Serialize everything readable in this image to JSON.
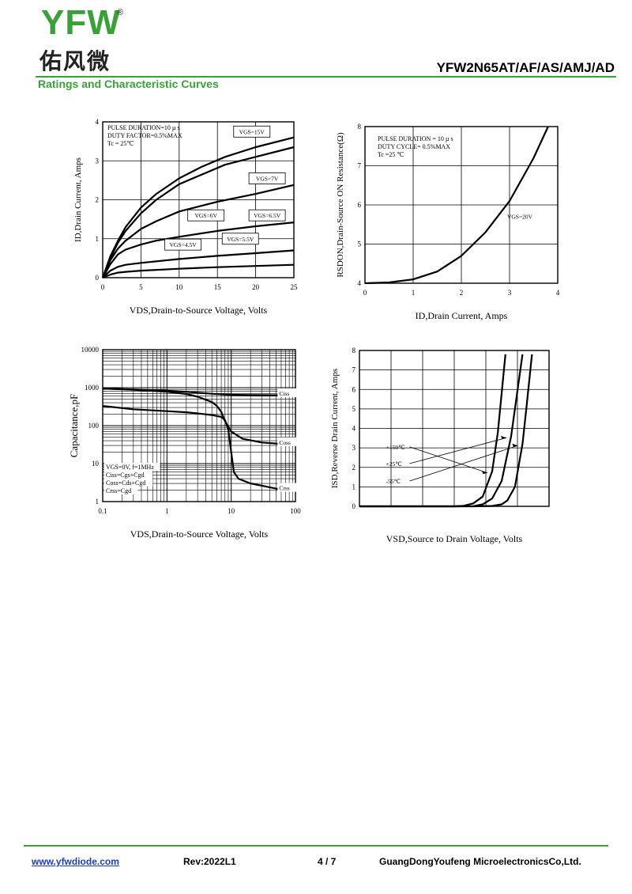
{
  "header": {
    "logo_text": "YFW",
    "logo_mark": "®",
    "logo_chinese": "佑风微",
    "part_number": "YFW2N65AT/AF/AS/AMJ/AD",
    "section_title": "Ratings and Characteristic Curves"
  },
  "footer": {
    "website": "www.yfwdiode.com",
    "revision": "Rev:2022L1",
    "page": "4 / 7",
    "company": "GuangDongYoufeng MicroelectronicsCo,Ltd."
  },
  "colors": {
    "brand": "#3aa13a",
    "link": "#1a3cc8"
  },
  "chart_data": [
    {
      "id": "output",
      "type": "line",
      "xlabel": "VDS,Drain-to-Source Voltage, Volts",
      "ylabel": "ID,Drain Current, Amps",
      "xlim": [
        0,
        25
      ],
      "ylim": [
        0,
        4
      ],
      "xticks": [
        0,
        5,
        10,
        15,
        20,
        25
      ],
      "yticks": [
        0,
        1,
        2,
        3,
        4
      ],
      "grid": true,
      "annotations": [
        "PULSE DURATION=10 µ s",
        "DUTY FACTOR=0.5%MAX",
        "Tc = 25℃"
      ],
      "series": [
        {
          "name": "VGS=15V",
          "x": [
            0,
            1,
            2,
            3,
            5,
            7,
            10,
            13,
            16,
            20,
            25
          ],
          "y": [
            0,
            0.55,
            0.95,
            1.3,
            1.8,
            2.15,
            2.55,
            2.85,
            3.1,
            3.35,
            3.6
          ]
        },
        {
          "name": "VGS=7V",
          "x": [
            0,
            1,
            2,
            3,
            5,
            7,
            10,
            13,
            16,
            20,
            25
          ],
          "y": [
            0,
            0.5,
            0.9,
            1.2,
            1.65,
            2.0,
            2.4,
            2.65,
            2.9,
            3.1,
            3.35
          ]
        },
        {
          "name": "VGS=6.5V",
          "x": [
            0,
            1,
            2,
            3,
            5,
            7,
            10,
            15,
            20,
            25
          ],
          "y": [
            0,
            0.45,
            0.75,
            0.95,
            1.25,
            1.45,
            1.7,
            1.95,
            2.15,
            2.38
          ]
        },
        {
          "name": "VGS=6V",
          "x": [
            0,
            1,
            2,
            3,
            5,
            7,
            10,
            15,
            20,
            25
          ],
          "y": [
            0,
            0.35,
            0.6,
            0.72,
            0.85,
            0.95,
            1.05,
            1.2,
            1.32,
            1.42
          ]
        },
        {
          "name": "VGS=5.5V",
          "x": [
            0,
            1,
            2,
            3,
            5,
            10,
            15,
            20,
            25
          ],
          "y": [
            0,
            0.18,
            0.28,
            0.33,
            0.38,
            0.48,
            0.56,
            0.63,
            0.7
          ]
        },
        {
          "name": "VGS=4.5V",
          "x": [
            0,
            1,
            2,
            3,
            5,
            10,
            15,
            20,
            25
          ],
          "y": [
            0,
            0.08,
            0.13,
            0.15,
            0.18,
            0.23,
            0.27,
            0.3,
            0.33
          ]
        }
      ],
      "labels": [
        {
          "text": "VGS=15V",
          "at": [
            19.5,
            3.75
          ]
        },
        {
          "text": "VGS=7V",
          "at": [
            21.5,
            2.55
          ]
        },
        {
          "text": "VGS=6.5V",
          "at": [
            21.5,
            1.6
          ]
        },
        {
          "text": "VGS=6V",
          "at": [
            13.5,
            1.6
          ]
        },
        {
          "text": "VGS=5.5V",
          "at": [
            18,
            1.0
          ]
        },
        {
          "text": "VGS=4.5V",
          "at": [
            10.5,
            0.85
          ]
        }
      ]
    },
    {
      "id": "rdson",
      "type": "line",
      "xlabel": "ID,Drain Current, Amps",
      "ylabel": "RSDON,Drain-Source ON Resistance(Ω)",
      "xlim": [
        0,
        4
      ],
      "ylim": [
        4,
        8
      ],
      "xticks": [
        0,
        1,
        2,
        3,
        4
      ],
      "yticks": [
        4,
        5,
        6,
        7,
        8
      ],
      "grid": true,
      "annotations": [
        "PULSE DURATION = 10 µ s",
        "DUTY CYCLE= 0.5%MAX",
        "Tc =25 ℃"
      ],
      "series": [
        {
          "name": "VGS=20V",
          "x": [
            0,
            0.5,
            1,
            1.5,
            2,
            2.5,
            3,
            3.5,
            3.8
          ],
          "y": [
            4.0,
            4.02,
            4.1,
            4.3,
            4.7,
            5.3,
            6.1,
            7.2,
            8.0
          ]
        }
      ],
      "labels": [
        {
          "text": "VGS=20V",
          "at": [
            2.95,
            5.65
          ]
        }
      ]
    },
    {
      "id": "capacitance",
      "type": "line",
      "xscale": "log",
      "yscale": "log",
      "xlabel": "VDS,Drain-to-Source Voltage, Volts",
      "ylabel": "Capacitance,pF",
      "xlim": [
        0.1,
        100
      ],
      "ylim": [
        1,
        10000
      ],
      "xticks": [
        0.1,
        1,
        10,
        100
      ],
      "yticks": [
        1,
        10,
        100,
        1000,
        10000
      ],
      "grid": true,
      "annotations": [
        "VGS=0V, f=1MHz",
        "Ciss=Cgs+Cgd",
        "Coss=Cds+Cgd",
        "Crss=Cgd"
      ],
      "series": [
        {
          "name": "Ciss",
          "x": [
            0.1,
            0.3,
            1,
            2,
            3,
            5,
            8,
            10,
            20,
            50,
            100
          ],
          "y": [
            950,
            900,
            830,
            780,
            740,
            690,
            660,
            650,
            640,
            630,
            620
          ]
        },
        {
          "name": "Coss",
          "x": [
            0.1,
            0.3,
            1,
            2,
            3,
            5,
            6,
            7,
            8,
            10,
            15,
            30,
            60,
            100
          ],
          "y": [
            950,
            880,
            780,
            680,
            580,
            420,
            330,
            230,
            130,
            70,
            45,
            36,
            33,
            32
          ]
        },
        {
          "name": "Crss",
          "x": [
            0.1,
            0.3,
            1,
            2,
            3,
            5,
            7,
            8,
            9,
            10,
            11,
            13,
            20,
            50,
            100
          ],
          "y": [
            330,
            270,
            240,
            225,
            210,
            190,
            170,
            140,
            80,
            20,
            6,
            4,
            3,
            2.2,
            2
          ]
        }
      ],
      "labels": [
        {
          "text": "Ciss",
          "at": [
            70,
            620
          ]
        },
        {
          "text": "Coss",
          "at": [
            70,
            32
          ]
        },
        {
          "text": "Crss",
          "at": [
            70,
            2
          ]
        }
      ]
    },
    {
      "id": "body-diode",
      "type": "line",
      "xlabel": "VSD,Source to Drain Voltage, Volts",
      "ylabel": "ISD,Reverse Drain Current, Amps",
      "xlim": [
        0,
        1
      ],
      "ylim": [
        0,
        8
      ],
      "yticks": [
        0,
        1,
        2,
        3,
        4,
        5,
        6,
        7,
        8
      ],
      "grid": true,
      "series": [
        {
          "name": "+150℃",
          "x": [
            0,
            0.3,
            0.5,
            0.55,
            0.6,
            0.65,
            0.7,
            0.73,
            0.77
          ],
          "y": [
            0,
            0,
            0,
            0.03,
            0.15,
            0.5,
            1.8,
            3.8,
            7.8
          ]
        },
        {
          "name": "+25℃",
          "x": [
            0,
            0.5,
            0.6,
            0.65,
            0.7,
            0.75,
            0.8,
            0.82,
            0.86
          ],
          "y": [
            0,
            0,
            0.01,
            0.1,
            0.4,
            1.3,
            3.6,
            5.0,
            7.8
          ]
        },
        {
          "name": "-55℃",
          "x": [
            0,
            0.6,
            0.7,
            0.75,
            0.78,
            0.82,
            0.86,
            0.88,
            0.91
          ],
          "y": [
            0,
            0,
            0.02,
            0.1,
            0.3,
            1.0,
            3.2,
            5.0,
            7.8
          ]
        }
      ],
      "labels": [
        {
          "text": "+150℃",
          "at": [
            0.14,
            3.05
          ]
        },
        {
          "text": "+25℃",
          "at": [
            0.14,
            2.2
          ]
        },
        {
          "text": "-55℃",
          "at": [
            0.14,
            1.3
          ]
        }
      ]
    }
  ]
}
